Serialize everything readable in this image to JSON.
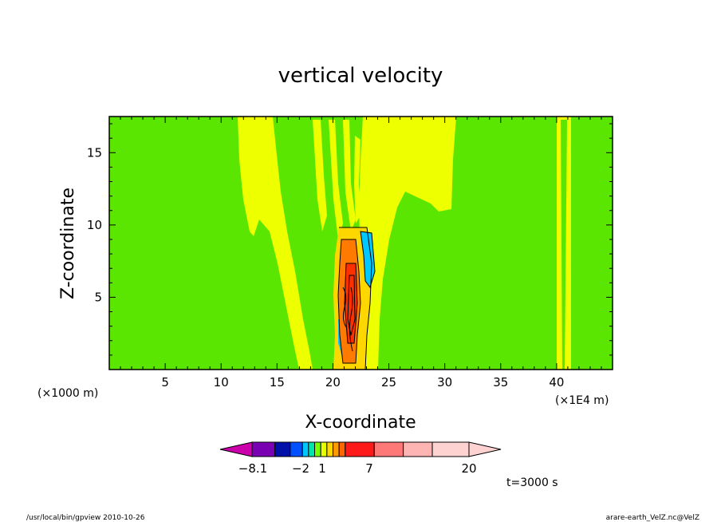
{
  "chart_data": {
    "type": "heatmap",
    "title": "vertical velocity",
    "xlabel": "X-coordinate",
    "ylabel": "Z-coordinate",
    "x_unit": "(×1000 m)",
    "x_unit_right": "(×1E4 m)",
    "xlim": [
      0,
      45
    ],
    "ylim": [
      0,
      17.5
    ],
    "xticks": [
      "5",
      "10",
      "15",
      "20",
      "25",
      "30",
      "35",
      "40"
    ],
    "yticks": [
      "5",
      "10",
      "15"
    ],
    "xtick_values": [
      5,
      10,
      15,
      20,
      25,
      30,
      35,
      40
    ],
    "ytick_values": [
      5,
      10,
      15
    ],
    "colorbar": {
      "labels": [
        "−8.1",
        "−2",
        "1",
        "7",
        "20"
      ],
      "label_boundary_index": [
        1,
        4,
        6,
        9,
        14
      ],
      "colors": [
        "#cc00aa",
        "#7a00b4",
        "#0010a8",
        "#0050ff",
        "#00c8ff",
        "#00e6aa",
        "#78ff00",
        "#e6ff00",
        "#ffd700",
        "#ff9a00",
        "#ff6600",
        "#ff1a1a",
        "#ff7878",
        "#ffb4b4",
        "#ffd2d2"
      ]
    },
    "regions": [
      {
        "level": "#d8ff14",
        "x": [
          12.5,
          18.5
        ],
        "z": [
          0,
          17.5
        ],
        "desc": "left flank"
      },
      {
        "level": "#d8ff14",
        "x": [
          24.5,
          30.5
        ],
        "z": [
          0,
          17.5
        ],
        "desc": "right flank"
      },
      {
        "level": "#d8ff14",
        "x": [
          40.2,
          41.5
        ],
        "z": [
          0,
          17.5
        ],
        "desc": "right band"
      },
      {
        "level": "#ff6600",
        "x": [
          20.8,
          22.6
        ],
        "z": [
          0.5,
          9
        ],
        "desc": "updraft core"
      }
    ]
  },
  "time_label": "t=3000 s",
  "footer_left": "/usr/local/bin/gpview   2010-10-26",
  "footer_right": "arare-earth_VelZ.nc@VelZ"
}
